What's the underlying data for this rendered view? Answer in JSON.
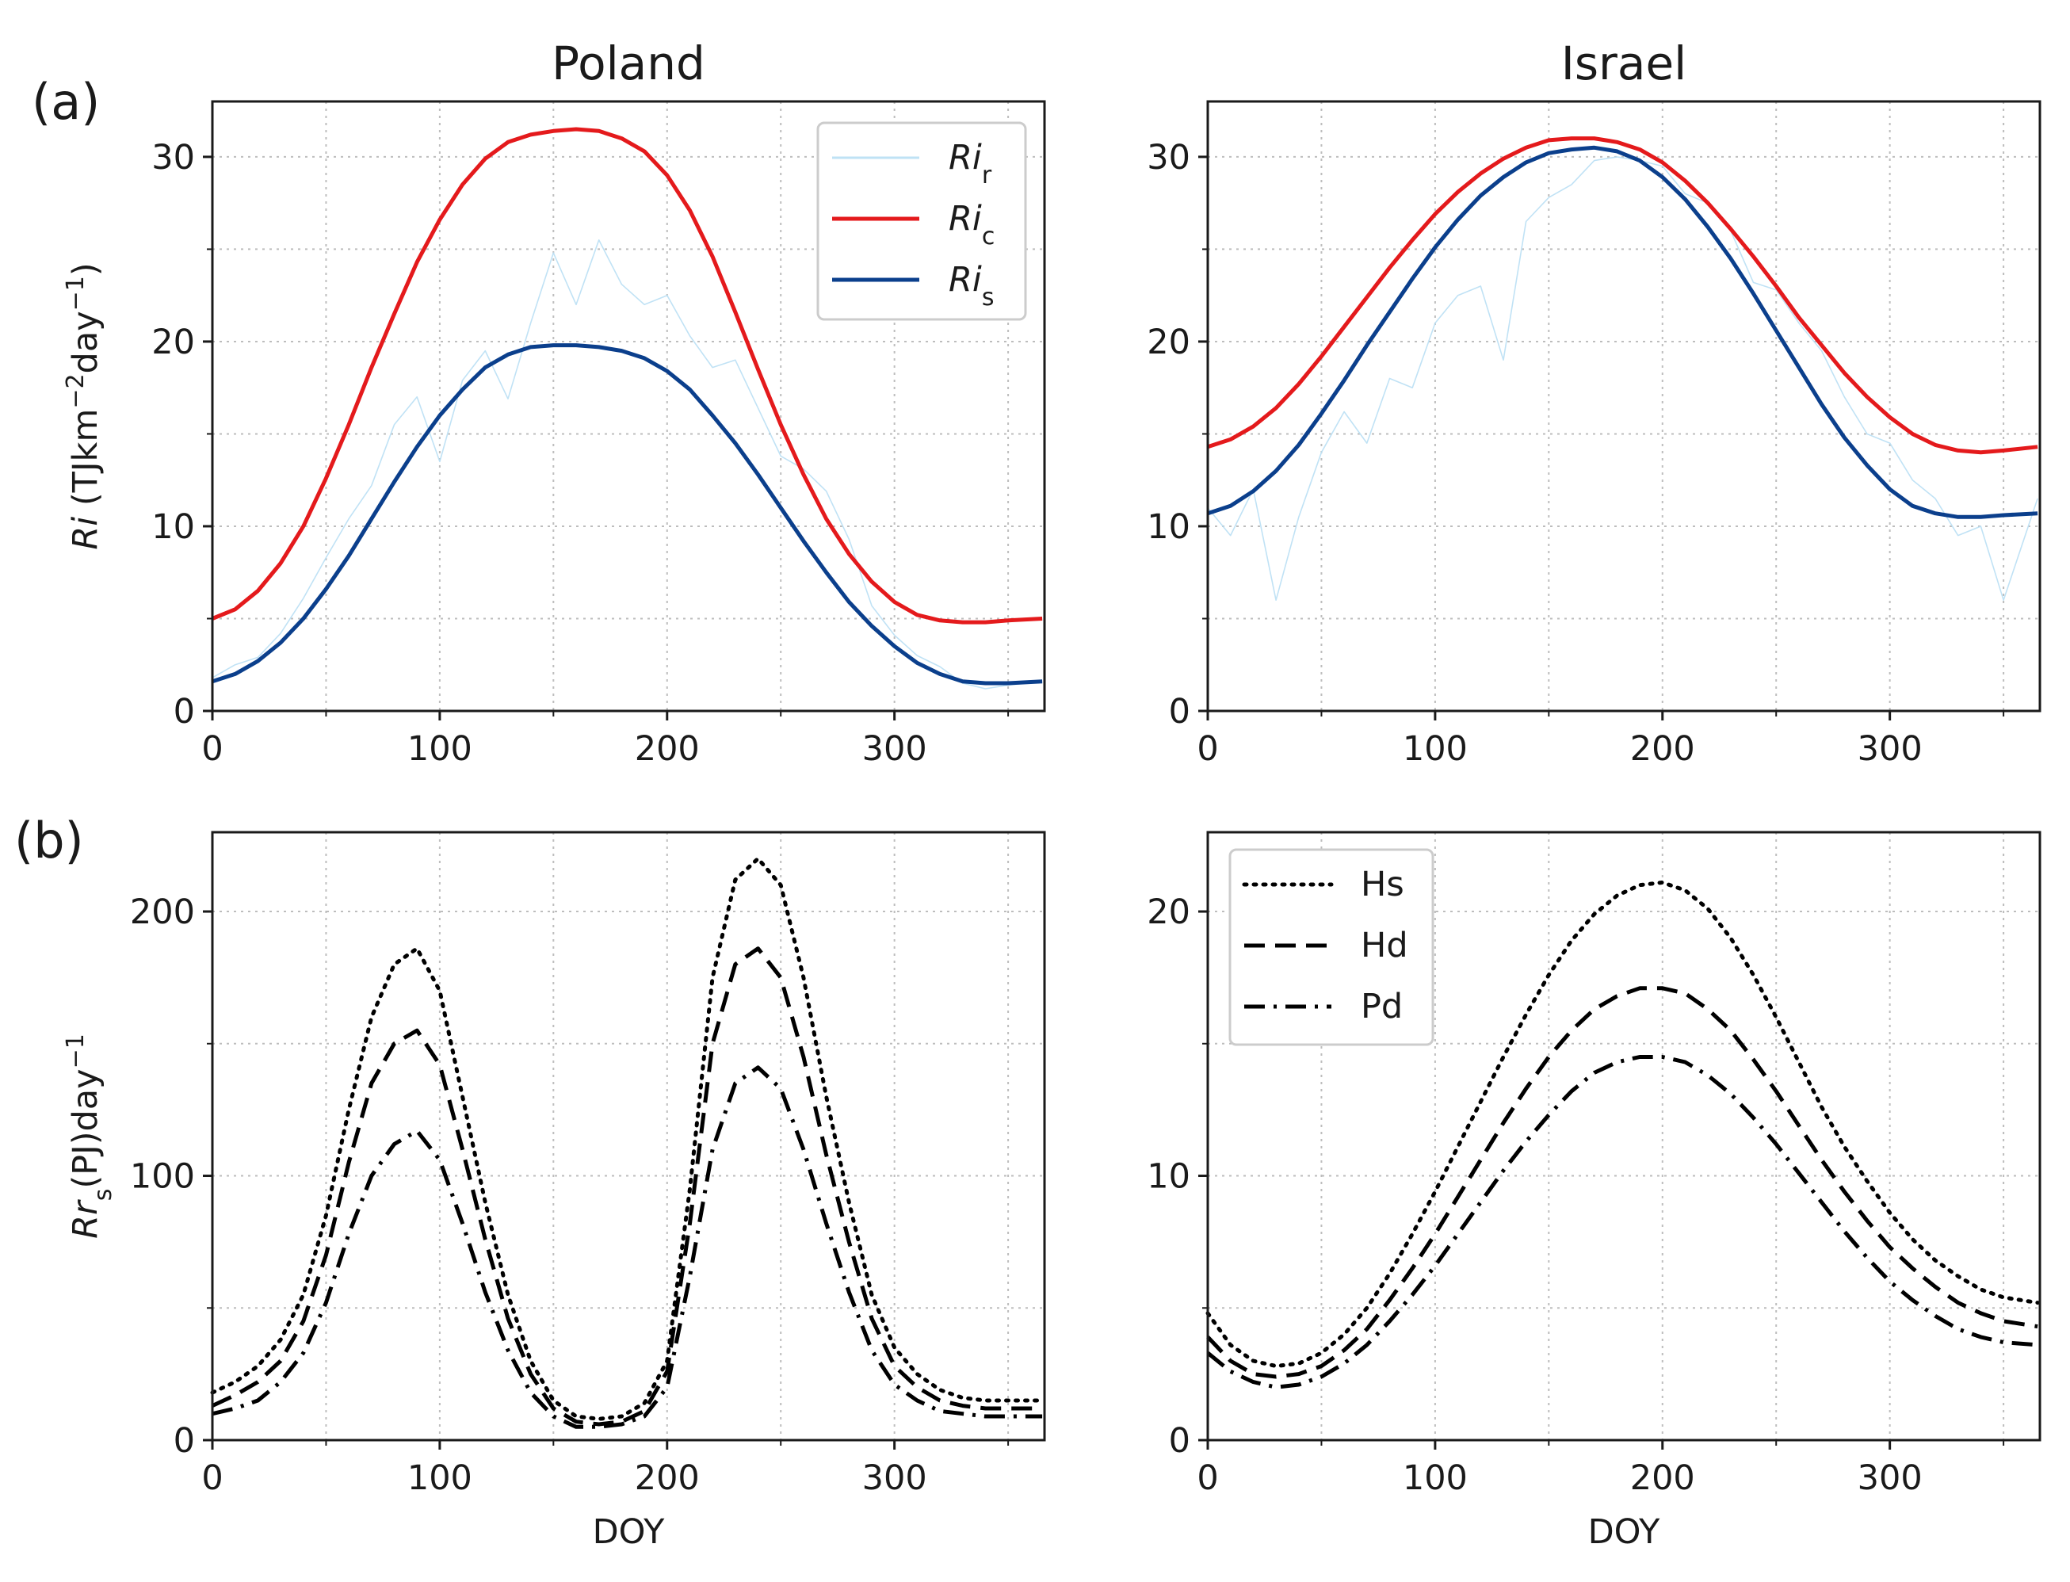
{
  "figure": {
    "panel_labels": [
      "(a)",
      "(b)"
    ],
    "columns": [
      "Poland",
      "Israel"
    ]
  },
  "colors": {
    "Ri_r": "#b9dff4",
    "Ri_c": "#e41a1c",
    "Ri_s": "#0b3f8c",
    "black": "#000000"
  },
  "chart_data": [
    {
      "id": "a_poland",
      "type": "line",
      "title": "Poland",
      "panel_label": "(a)",
      "xlabel": "",
      "ylabel": "Ri (TJkm⁻²day⁻¹)",
      "ylabel_parts": {
        "var": "Ri",
        "unit": " (TJkm",
        "sup1": "−2",
        "mid": "day",
        "sup2": "−1",
        "end": ")"
      },
      "xlim": [
        0,
        366
      ],
      "ylim": [
        0,
        33
      ],
      "xticks": [
        0,
        100,
        200,
        300
      ],
      "yticks": [
        0,
        10,
        20,
        30
      ],
      "grid": true,
      "legend": "top-right",
      "series": [
        {
          "key": "Ri_r",
          "name": "Ri",
          "sub": "r",
          "style": "thin",
          "x": [
            0,
            10,
            20,
            30,
            40,
            50,
            60,
            70,
            80,
            90,
            100,
            110,
            120,
            130,
            140,
            150,
            160,
            170,
            180,
            190,
            200,
            210,
            220,
            230,
            240,
            250,
            260,
            270,
            280,
            290,
            300,
            310,
            320,
            330,
            340,
            350,
            365
          ],
          "y": [
            1.8,
            2.5,
            2.9,
            4.2,
            6.1,
            8.3,
            10.4,
            12.2,
            15.5,
            17.0,
            13.5,
            17.9,
            19.5,
            16.9,
            21.0,
            24.8,
            22.0,
            25.5,
            23.1,
            22.0,
            22.5,
            20.3,
            18.6,
            19.0,
            16.4,
            13.8,
            13.1,
            11.9,
            9.3,
            5.7,
            4.1,
            3.0,
            2.4,
            1.5,
            1.2,
            1.4,
            1.6
          ]
        },
        {
          "key": "Ri_c",
          "name": "Ri",
          "sub": "c",
          "style": "solid",
          "x": [
            0,
            10,
            20,
            30,
            40,
            50,
            60,
            70,
            80,
            90,
            100,
            110,
            120,
            130,
            140,
            150,
            160,
            170,
            180,
            190,
            200,
            210,
            220,
            230,
            240,
            250,
            260,
            270,
            280,
            290,
            300,
            310,
            320,
            330,
            340,
            350,
            365
          ],
          "y": [
            5.0,
            5.5,
            6.5,
            8.0,
            10.0,
            12.6,
            15.5,
            18.6,
            21.5,
            24.3,
            26.6,
            28.5,
            29.9,
            30.8,
            31.2,
            31.4,
            31.5,
            31.4,
            31.0,
            30.3,
            29.0,
            27.1,
            24.6,
            21.6,
            18.5,
            15.5,
            12.8,
            10.4,
            8.5,
            7.0,
            5.9,
            5.2,
            4.9,
            4.8,
            4.8,
            4.9,
            5.0
          ]
        },
        {
          "key": "Ri_s",
          "name": "Ri",
          "sub": "s",
          "style": "solid",
          "x": [
            0,
            10,
            20,
            30,
            40,
            50,
            60,
            70,
            80,
            90,
            100,
            110,
            120,
            130,
            140,
            150,
            160,
            170,
            180,
            190,
            200,
            210,
            220,
            230,
            240,
            250,
            260,
            270,
            280,
            290,
            300,
            310,
            320,
            330,
            340,
            350,
            365
          ],
          "y": [
            1.6,
            2.0,
            2.7,
            3.7,
            5.0,
            6.6,
            8.4,
            10.4,
            12.4,
            14.3,
            16.0,
            17.4,
            18.6,
            19.3,
            19.7,
            19.8,
            19.8,
            19.7,
            19.5,
            19.1,
            18.4,
            17.4,
            16.0,
            14.5,
            12.8,
            11.0,
            9.2,
            7.5,
            5.9,
            4.6,
            3.5,
            2.6,
            2.0,
            1.6,
            1.5,
            1.5,
            1.6
          ]
        }
      ]
    },
    {
      "id": "a_israel",
      "type": "line",
      "title": "Israel",
      "xlabel": "",
      "ylabel": "",
      "xlim": [
        0,
        366
      ],
      "ylim": [
        0,
        33
      ],
      "xticks": [
        0,
        100,
        200,
        300
      ],
      "yticks": [
        0,
        10,
        20,
        30
      ],
      "grid": true,
      "series": [
        {
          "key": "Ri_r",
          "name": "Ri",
          "sub": "r",
          "style": "thin",
          "x": [
            0,
            10,
            20,
            30,
            40,
            50,
            60,
            70,
            80,
            90,
            100,
            110,
            120,
            130,
            140,
            150,
            160,
            170,
            180,
            190,
            200,
            210,
            220,
            230,
            240,
            250,
            260,
            270,
            280,
            290,
            300,
            310,
            320,
            330,
            340,
            350,
            365
          ],
          "y": [
            11.0,
            9.5,
            12.0,
            6.0,
            10.5,
            14.0,
            16.2,
            14.5,
            18.0,
            17.5,
            21.0,
            22.5,
            23.0,
            19.0,
            26.5,
            27.8,
            28.5,
            29.8,
            30.0,
            29.8,
            29.5,
            28.0,
            27.5,
            26.0,
            23.2,
            22.8,
            21.0,
            19.5,
            17.0,
            15.0,
            14.5,
            12.5,
            11.5,
            9.5,
            10.0,
            6.0,
            11.5
          ]
        },
        {
          "key": "Ri_c",
          "name": "Ri",
          "sub": "c",
          "style": "solid",
          "x": [
            0,
            10,
            20,
            30,
            40,
            50,
            60,
            70,
            80,
            90,
            100,
            110,
            120,
            130,
            140,
            150,
            160,
            170,
            180,
            190,
            200,
            210,
            220,
            230,
            240,
            250,
            260,
            270,
            280,
            290,
            300,
            310,
            320,
            330,
            340,
            350,
            365
          ],
          "y": [
            14.3,
            14.7,
            15.4,
            16.4,
            17.7,
            19.2,
            20.8,
            22.4,
            24.0,
            25.5,
            26.9,
            28.1,
            29.1,
            29.9,
            30.5,
            30.9,
            31.0,
            31.0,
            30.8,
            30.4,
            29.7,
            28.7,
            27.5,
            26.1,
            24.6,
            23.0,
            21.3,
            19.8,
            18.3,
            17.0,
            15.9,
            15.0,
            14.4,
            14.1,
            14.0,
            14.1,
            14.3
          ]
        },
        {
          "key": "Ri_s",
          "name": "Ri",
          "sub": "s",
          "style": "solid",
          "x": [
            0,
            10,
            20,
            30,
            40,
            50,
            60,
            70,
            80,
            90,
            100,
            110,
            120,
            130,
            140,
            150,
            160,
            170,
            180,
            190,
            200,
            210,
            220,
            230,
            240,
            250,
            260,
            270,
            280,
            290,
            300,
            310,
            320,
            330,
            340,
            350,
            365
          ],
          "y": [
            10.7,
            11.1,
            11.9,
            13.0,
            14.4,
            16.1,
            17.9,
            19.8,
            21.6,
            23.4,
            25.1,
            26.6,
            27.9,
            28.9,
            29.7,
            30.2,
            30.4,
            30.5,
            30.3,
            29.8,
            28.9,
            27.7,
            26.2,
            24.5,
            22.6,
            20.6,
            18.6,
            16.6,
            14.8,
            13.3,
            12.0,
            11.1,
            10.7,
            10.5,
            10.5,
            10.6,
            10.7
          ]
        }
      ]
    },
    {
      "id": "b_poland",
      "type": "line",
      "panel_label": "(b)",
      "xlabel": "DOY",
      "ylabel": "Rrₛ(PJ)day⁻¹",
      "ylabel_parts": {
        "var": "Rr",
        "sub": "s",
        "unit": "(PJ)day",
        "sup": "−1"
      },
      "xlim": [
        0,
        366
      ],
      "ylim": [
        0,
        230
      ],
      "xticks": [
        0,
        100,
        200,
        300
      ],
      "yticks": [
        0,
        100,
        200
      ],
      "grid": true,
      "series": [
        {
          "key": "Hs",
          "name": "Hs",
          "style": "dotted",
          "x": [
            0,
            10,
            20,
            30,
            40,
            50,
            60,
            70,
            80,
            90,
            100,
            110,
            120,
            130,
            140,
            150,
            160,
            170,
            180,
            190,
            200,
            210,
            220,
            230,
            240,
            250,
            260,
            270,
            280,
            290,
            300,
            310,
            320,
            330,
            340,
            350,
            365
          ],
          "y": [
            18,
            22,
            28,
            38,
            55,
            85,
            125,
            160,
            180,
            186,
            170,
            130,
            90,
            55,
            30,
            15,
            9,
            8,
            9,
            14,
            30,
            95,
            175,
            212,
            220,
            210,
            175,
            130,
            90,
            55,
            35,
            25,
            19,
            16,
            15,
            15,
            15
          ]
        },
        {
          "key": "Hd",
          "name": "Hd",
          "style": "dashed",
          "x": [
            0,
            10,
            20,
            30,
            40,
            50,
            60,
            70,
            80,
            90,
            100,
            110,
            120,
            130,
            140,
            150,
            160,
            170,
            180,
            190,
            200,
            210,
            220,
            230,
            240,
            250,
            260,
            270,
            280,
            290,
            300,
            310,
            320,
            330,
            340,
            350,
            365
          ],
          "y": [
            13,
            17,
            22,
            30,
            45,
            70,
            105,
            135,
            150,
            155,
            142,
            110,
            76,
            46,
            25,
            12,
            7,
            6,
            7,
            11,
            26,
            82,
            150,
            180,
            186,
            175,
            145,
            108,
            75,
            46,
            28,
            20,
            15,
            13,
            12,
            12,
            12
          ]
        },
        {
          "key": "Pd",
          "name": "Pd",
          "style": "dashdot",
          "x": [
            0,
            10,
            20,
            30,
            40,
            50,
            60,
            70,
            80,
            90,
            100,
            110,
            120,
            130,
            140,
            150,
            160,
            170,
            180,
            190,
            200,
            210,
            220,
            230,
            240,
            250,
            260,
            270,
            280,
            290,
            300,
            310,
            320,
            330,
            340,
            350,
            365
          ],
          "y": [
            10,
            12,
            15,
            22,
            33,
            52,
            78,
            100,
            112,
            117,
            106,
            82,
            56,
            34,
            18,
            9,
            5,
            5,
            6,
            9,
            20,
            62,
            110,
            135,
            141,
            133,
            110,
            82,
            56,
            34,
            21,
            15,
            11,
            10,
            9,
            9,
            9
          ]
        }
      ]
    },
    {
      "id": "b_israel",
      "type": "line",
      "xlabel": "DOY",
      "ylabel": "",
      "xlim": [
        0,
        366
      ],
      "ylim": [
        0,
        23
      ],
      "xticks": [
        0,
        100,
        200,
        300
      ],
      "yticks": [
        0,
        10,
        20
      ],
      "grid": true,
      "legend": "top-left",
      "series": [
        {
          "key": "Hs",
          "name": "Hs",
          "style": "dotted",
          "x": [
            0,
            10,
            20,
            30,
            40,
            50,
            60,
            70,
            80,
            90,
            100,
            110,
            120,
            130,
            140,
            150,
            160,
            170,
            180,
            190,
            200,
            210,
            220,
            230,
            240,
            250,
            260,
            270,
            280,
            290,
            300,
            310,
            320,
            330,
            340,
            350,
            365
          ],
          "y": [
            4.8,
            3.6,
            3.0,
            2.8,
            2.9,
            3.3,
            4.0,
            5.0,
            6.3,
            7.8,
            9.4,
            11.1,
            12.8,
            14.5,
            16.1,
            17.6,
            18.9,
            19.9,
            20.6,
            21.0,
            21.1,
            20.8,
            20.1,
            19.0,
            17.6,
            16.0,
            14.3,
            12.6,
            11.1,
            9.8,
            8.6,
            7.6,
            6.8,
            6.2,
            5.7,
            5.4,
            5.2
          ]
        },
        {
          "key": "Hd",
          "name": "Hd",
          "style": "dashed",
          "x": [
            0,
            10,
            20,
            30,
            40,
            50,
            60,
            70,
            80,
            90,
            100,
            110,
            120,
            130,
            140,
            150,
            160,
            170,
            180,
            190,
            200,
            210,
            220,
            230,
            240,
            250,
            260,
            270,
            280,
            290,
            300,
            310,
            320,
            330,
            340,
            350,
            365
          ],
          "y": [
            3.9,
            3.0,
            2.5,
            2.4,
            2.5,
            2.8,
            3.4,
            4.2,
            5.3,
            6.5,
            7.8,
            9.2,
            10.6,
            12.0,
            13.3,
            14.5,
            15.5,
            16.3,
            16.8,
            17.1,
            17.1,
            16.9,
            16.3,
            15.5,
            14.4,
            13.2,
            11.9,
            10.6,
            9.4,
            8.3,
            7.3,
            6.5,
            5.8,
            5.2,
            4.8,
            4.5,
            4.3
          ]
        },
        {
          "key": "Pd",
          "name": "Pd",
          "style": "dashdot",
          "x": [
            0,
            10,
            20,
            30,
            40,
            50,
            60,
            70,
            80,
            90,
            100,
            110,
            120,
            130,
            140,
            150,
            160,
            170,
            180,
            190,
            200,
            210,
            220,
            230,
            240,
            250,
            260,
            270,
            280,
            290,
            300,
            310,
            320,
            330,
            340,
            350,
            365
          ],
          "y": [
            3.3,
            2.6,
            2.2,
            2.0,
            2.1,
            2.4,
            2.9,
            3.6,
            4.5,
            5.5,
            6.6,
            7.8,
            9.0,
            10.2,
            11.3,
            12.3,
            13.2,
            13.9,
            14.3,
            14.5,
            14.5,
            14.3,
            13.8,
            13.1,
            12.2,
            11.2,
            10.1,
            9.0,
            7.9,
            6.9,
            6.0,
            5.3,
            4.7,
            4.2,
            3.9,
            3.7,
            3.6
          ]
        }
      ]
    }
  ]
}
